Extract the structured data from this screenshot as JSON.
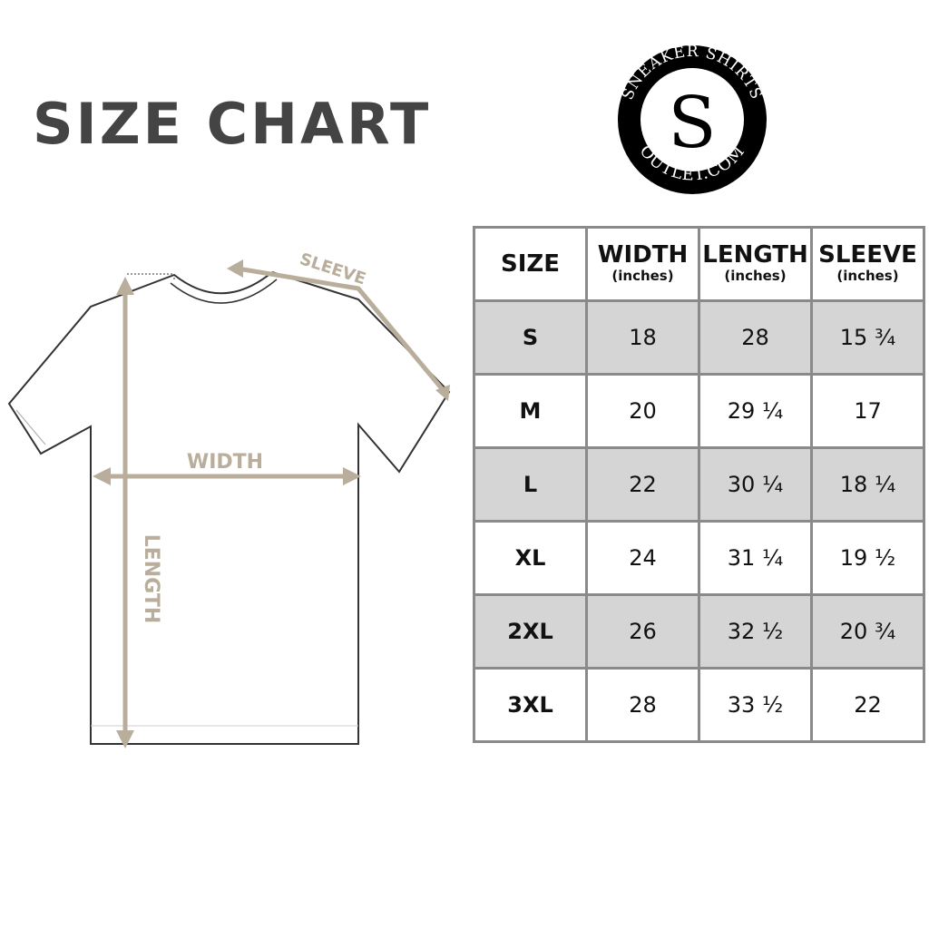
{
  "title": "SIZE CHART",
  "logo": {
    "text_top": "SNEAKER SHIRTS",
    "text_bottom": "OUTLET.COM"
  },
  "diagram": {
    "sleeve_label": "SLEEVE",
    "width_label": "WIDTH",
    "length_label": "LENGTH",
    "accent_color": "#b9ad9b"
  },
  "table": {
    "headers": [
      {
        "label": "SIZE",
        "unit": ""
      },
      {
        "label": "WIDTH",
        "unit": "(inches)"
      },
      {
        "label": "LENGTH",
        "unit": "(inches)"
      },
      {
        "label": "SLEEVE",
        "unit": "(inches)"
      }
    ],
    "rows": [
      {
        "size": "S",
        "width": "18",
        "length": "28",
        "sleeve": "15 ¾"
      },
      {
        "size": "M",
        "width": "20",
        "length": "29 ¼",
        "sleeve": "17"
      },
      {
        "size": "L",
        "width": "22",
        "length": "30 ¼",
        "sleeve": "18 ¼"
      },
      {
        "size": "XL",
        "width": "24",
        "length": "31 ¼",
        "sleeve": "19 ½"
      },
      {
        "size": "2XL",
        "width": "26",
        "length": "32 ½",
        "sleeve": "20 ¾"
      },
      {
        "size": "3XL",
        "width": "28",
        "length": "33 ½",
        "sleeve": "22"
      }
    ]
  }
}
